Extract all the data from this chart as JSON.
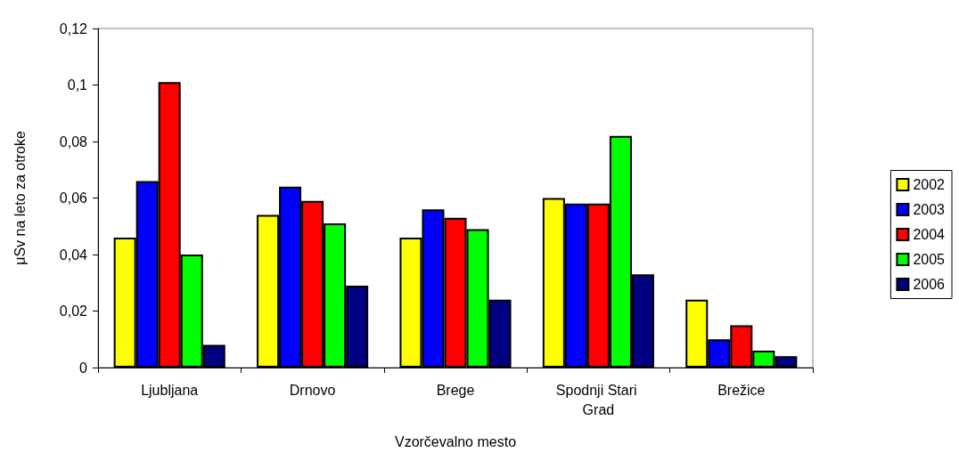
{
  "chart_data": {
    "type": "bar",
    "xlabel": "Vzorčevalno mesto",
    "ylabel": "μSv na leto za otroke",
    "categories": [
      "Ljubljana",
      "Drnovo",
      "Brege",
      "Spodnji Stari Grad",
      "Brežice"
    ],
    "series": [
      {
        "name": "2002",
        "color": "#ffff00",
        "values": [
          0.046,
          0.054,
          0.046,
          0.06,
          0.024
        ]
      },
      {
        "name": "2003",
        "color": "#0000ff",
        "values": [
          0.066,
          0.064,
          0.056,
          0.058,
          0.01
        ]
      },
      {
        "name": "2004",
        "color": "#ff0000",
        "values": [
          0.101,
          0.059,
          0.053,
          0.058,
          0.015
        ]
      },
      {
        "name": "2005",
        "color": "#00ff00",
        "values": [
          0.04,
          0.051,
          0.049,
          0.082,
          0.006
        ]
      },
      {
        "name": "2006",
        "color": "#000080",
        "values": [
          0.008,
          0.029,
          0.024,
          0.033,
          0.004
        ]
      }
    ],
    "ylim": [
      0,
      0.12
    ],
    "yticks": [
      0,
      {
        "value": 0.02,
        "label": "0,02"
      },
      {
        "value": 0.04,
        "label": "0,04"
      },
      {
        "value": 0.06,
        "label": "0,06"
      },
      {
        "value": 0.08,
        "label": "0,08"
      },
      {
        "value": 0.1,
        "label": "0,1"
      },
      {
        "value": 0.12,
        "label": "0,12"
      }
    ],
    "grid": false,
    "legend": "right"
  }
}
